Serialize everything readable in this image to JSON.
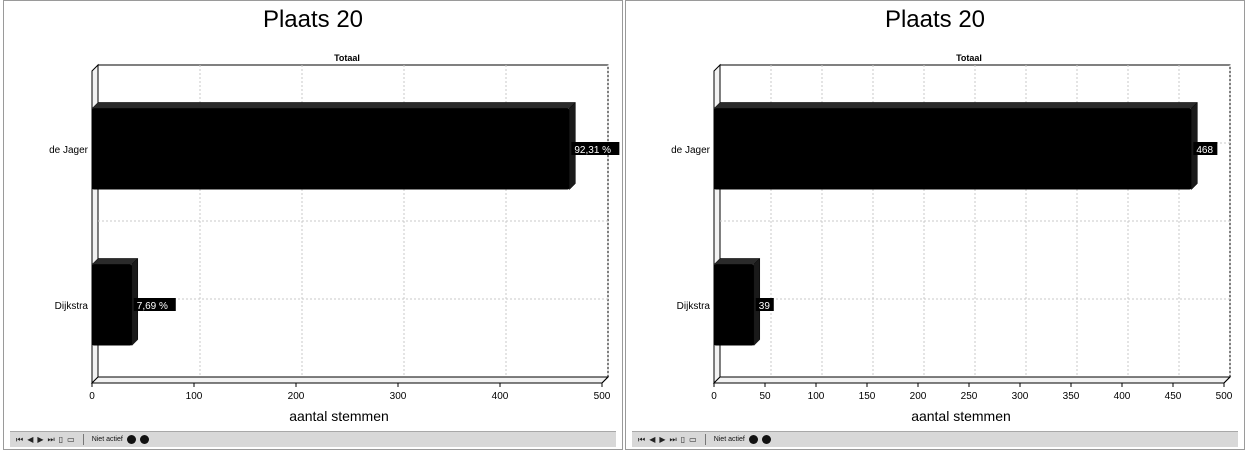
{
  "chart_data": [
    {
      "type": "bar",
      "orientation": "horizontal",
      "title": "Plaats 20",
      "subtitle": "Totaal",
      "xlabel": "aantal stemmen",
      "ylabel": "",
      "categories": [
        "de Jager",
        "Dijkstra"
      ],
      "values": [
        468,
        39
      ],
      "data_labels": [
        "92,31 %",
        "7,69 %"
      ],
      "xlim": [
        0,
        500
      ],
      "x_ticks": [
        0,
        100,
        200,
        300,
        400,
        500
      ],
      "grid": true,
      "bar_color": "#000000"
    },
    {
      "type": "bar",
      "orientation": "horizontal",
      "title": "Plaats 20",
      "subtitle": "Totaal",
      "xlabel": "aantal stemmen",
      "ylabel": "",
      "categories": [
        "de Jager",
        "Dijkstra"
      ],
      "values": [
        468,
        39
      ],
      "data_labels": [
        "468",
        "39"
      ],
      "xlim": [
        0,
        500
      ],
      "x_ticks": [
        0,
        50,
        100,
        150,
        200,
        250,
        300,
        350,
        400,
        450,
        500
      ],
      "grid": true,
      "bar_color": "#000000"
    }
  ],
  "toolbar": {
    "buttons": [
      "⏮",
      "◀",
      "▶",
      "⏭",
      "▯",
      "▭"
    ],
    "status_label": "Niet actief"
  }
}
